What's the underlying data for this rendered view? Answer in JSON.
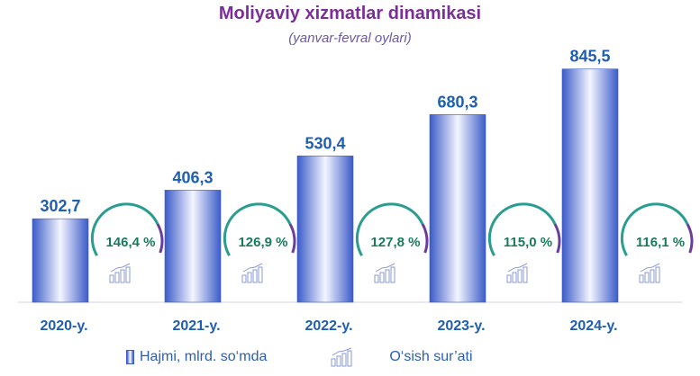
{
  "title": "Moliyaviy xizmatlar dinamikasi",
  "subtitle": "(yanvar-fevral oylari)",
  "legend": {
    "volume": "Hajmi, mlrd. so‘mda",
    "growth": "O‘sish sur’ati"
  },
  "colors": {
    "bar": "#3b5bc9",
    "value_label": "#1f5fb0",
    "category_label": "#1f5fb0",
    "growth_text": "#1a7a5c",
    "arc_teal": "#2a9d8f",
    "arc_purple": "#6a3d9a",
    "icon": "#8a9ad6"
  },
  "chart_data": {
    "type": "bar",
    "categories": [
      "2020-y.",
      "2021-y.",
      "2022-y.",
      "2023-y.",
      "2024-y."
    ],
    "values": [
      302.7,
      406.3,
      530.4,
      680.3,
      845.5
    ],
    "value_labels": [
      "302,7",
      "406,3",
      "530,4",
      "680,3",
      "845,5"
    ],
    "growth_rates": [
      146.4,
      126.9,
      127.8,
      115.0,
      116.1
    ],
    "growth_labels": [
      "146,4 %",
      "126,9 %",
      "127,8 %",
      "115,0 %",
      "116,1 %"
    ],
    "ylim": [
      0,
      900
    ],
    "grid": false,
    "legend_position": "bottom"
  }
}
